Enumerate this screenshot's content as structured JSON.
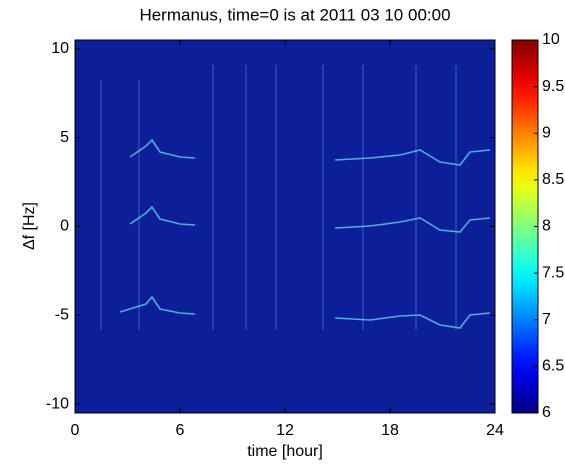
{
  "chart_data": {
    "type": "spectrogram",
    "title": "Hermanus, time=0 is at 2011 03 10 00:00",
    "xlabel": "time [hour]",
    "ylabel": "Δf [Hz]",
    "xlim": [
      0,
      24
    ],
    "xticks": [
      0,
      6,
      12,
      18,
      24
    ],
    "ylim": [
      -10.5,
      10.5
    ],
    "yticks": [
      -10,
      -5,
      0,
      5,
      10
    ],
    "colormap": "jet",
    "clim": [
      6,
      10
    ],
    "cticks": [
      6,
      6.5,
      7,
      7.5,
      8,
      8.5,
      9,
      9.5,
      10
    ]
  }
}
